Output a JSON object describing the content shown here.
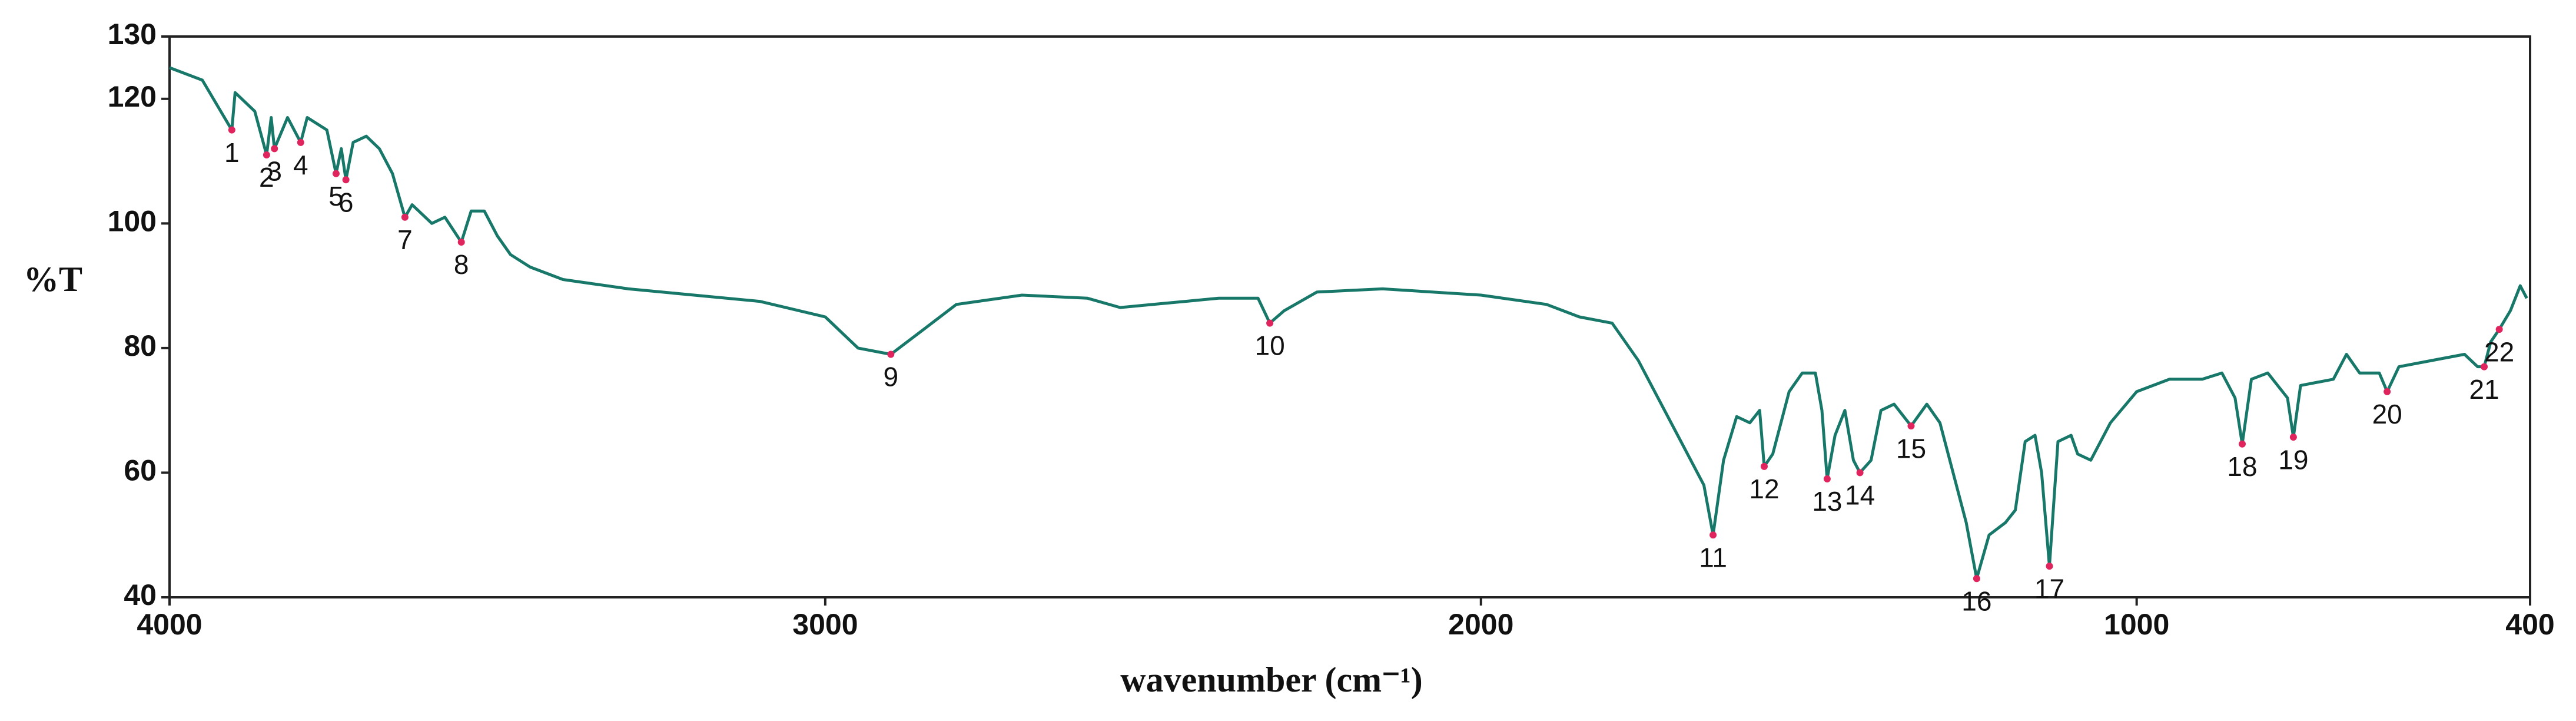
{
  "chart_data": {
    "type": "line",
    "xlabel": "wavenumber (cm⁻¹)",
    "ylabel": "%T",
    "color": "#17786a",
    "xlim": [
      4000,
      400
    ],
    "ylim": [
      40,
      130
    ],
    "xticks": [
      4000,
      3000,
      2000,
      1000,
      400
    ],
    "yticks": [
      40,
      60,
      80,
      100,
      120,
      130
    ],
    "x": [
      4000,
      3950,
      3905,
      3900,
      3870,
      3852,
      3845,
      3840,
      3820,
      3800,
      3790,
      3760,
      3746,
      3738,
      3731,
      3720,
      3700,
      3680,
      3660,
      3641,
      3630,
      3600,
      3580,
      3555,
      3540,
      3520,
      3500,
      3480,
      3450,
      3400,
      3300,
      3200,
      3100,
      3000,
      2950,
      2900,
      2850,
      2800,
      2700,
      2600,
      2550,
      2500,
      2400,
      2340,
      2322,
      2300,
      2250,
      2150,
      2000,
      1900,
      1850,
      1800,
      1760,
      1720,
      1690,
      1660,
      1646,
      1630,
      1610,
      1590,
      1575,
      1568,
      1555,
      1530,
      1510,
      1490,
      1480,
      1472,
      1460,
      1445,
      1432,
      1422,
      1405,
      1390,
      1370,
      1344,
      1320,
      1300,
      1280,
      1260,
      1244,
      1225,
      1200,
      1185,
      1170,
      1155,
      1145,
      1133,
      1120,
      1100,
      1090,
      1070,
      1040,
      1000,
      950,
      900,
      870,
      850,
      839,
      825,
      800,
      770,
      761,
      750,
      700,
      680,
      660,
      630,
      618,
      600,
      550,
      500,
      480,
      470,
      460,
      447,
      430,
      415,
      405
    ],
    "values": [
      125,
      123,
      115,
      121,
      118,
      111,
      117,
      112,
      117,
      113,
      117,
      115,
      108,
      112,
      107,
      113,
      114,
      112,
      108,
      101,
      103,
      100,
      101,
      97,
      102,
      102,
      98,
      95,
      93,
      91,
      89.5,
      88.5,
      87.5,
      85,
      80,
      79,
      83,
      87,
      88.5,
      88,
      86.5,
      87,
      88,
      88,
      84,
      86,
      89,
      89.5,
      88.5,
      87,
      85,
      84,
      78,
      70,
      64,
      58,
      50,
      62,
      69,
      68,
      70,
      61,
      63,
      73,
      76,
      76,
      70,
      59,
      66,
      70,
      62,
      60,
      62,
      70,
      71,
      67.5,
      71,
      68,
      60,
      52,
      43,
      50,
      52,
      54,
      65,
      66,
      60,
      45,
      65,
      66,
      63,
      62,
      68,
      73,
      75,
      75,
      76,
      72,
      64.6,
      75,
      76,
      72,
      65.7,
      74,
      75,
      79,
      76,
      76,
      73,
      77,
      78,
      79,
      77,
      77,
      81,
      83,
      86,
      90,
      88
    ],
    "peaks": [
      {
        "label": "1",
        "x": 3905,
        "y": 115
      },
      {
        "label": "2",
        "x": 3852,
        "y": 111
      },
      {
        "label": "3",
        "x": 3840,
        "y": 112
      },
      {
        "label": "4",
        "x": 3800,
        "y": 113
      },
      {
        "label": "5",
        "x": 3746,
        "y": 108
      },
      {
        "label": "6",
        "x": 3731,
        "y": 107
      },
      {
        "label": "7",
        "x": 3641,
        "y": 101
      },
      {
        "label": "8",
        "x": 3555,
        "y": 97
      },
      {
        "label": "9",
        "x": 2900,
        "y": 79
      },
      {
        "label": "10",
        "x": 2322,
        "y": 84
      },
      {
        "label": "11",
        "x": 1646,
        "y": 50
      },
      {
        "label": "12",
        "x": 1568,
        "y": 61
      },
      {
        "label": "13",
        "x": 1472,
        "y": 59
      },
      {
        "label": "14",
        "x": 1422,
        "y": 60
      },
      {
        "label": "15",
        "x": 1344,
        "y": 67.5
      },
      {
        "label": "16",
        "x": 1244,
        "y": 43
      },
      {
        "label": "17",
        "x": 1133,
        "y": 45
      },
      {
        "label": "18",
        "x": 839,
        "y": 64.6
      },
      {
        "label": "19",
        "x": 761,
        "y": 65.7
      },
      {
        "label": "20",
        "x": 618,
        "y": 73
      },
      {
        "label": "21",
        "x": 470,
        "y": 77
      },
      {
        "label": "22",
        "x": 447,
        "y": 83
      }
    ]
  }
}
